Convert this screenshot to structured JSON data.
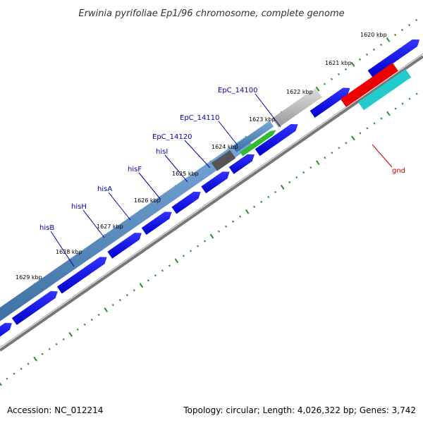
{
  "title": "Erwinia pyrifoliae Ep1/96 chromosome, complete genome",
  "footer": {
    "accession": "Accession: NC_012214",
    "summary": "Topology: circular; Length: 4,026,322 bp; Genes: 3,742"
  },
  "ticks": [
    {
      "label": "1620 kbp"
    },
    {
      "label": "1621 kbp"
    },
    {
      "label": "1622 kbp"
    },
    {
      "label": "1623 kbp"
    },
    {
      "label": "1624 kbp"
    },
    {
      "label": "1625 kbp"
    },
    {
      "label": "1626 kbp"
    },
    {
      "label": "1627 kbp"
    },
    {
      "label": "1628 kbp"
    },
    {
      "label": "1629 kbp"
    }
  ],
  "gene_labels": [
    {
      "name": "EpC_14100",
      "color": "#0000aa"
    },
    {
      "name": "EpC_14110",
      "color": "#0000aa"
    },
    {
      "name": "EpC_14120",
      "color": "#0000aa"
    },
    {
      "name": "hisI",
      "color": "#0000aa"
    },
    {
      "name": "hisF",
      "color": "#0000aa"
    },
    {
      "name": "hisA",
      "color": "#0000aa"
    },
    {
      "name": "hisH",
      "color": "#0000aa"
    },
    {
      "name": "hisB",
      "color": "#0000aa"
    },
    {
      "name": "gnd",
      "color": "#cc0000"
    }
  ],
  "colors": {
    "backbone": "#888888",
    "tick": "#2e8b2e",
    "cds_forward": "#0000ee",
    "operon": "#4a86b8",
    "gray_feature": "#bbbbbb",
    "dark_feature": "#555555",
    "green_feature": "#33bb33",
    "red_feature": "#ee0000",
    "cyan_feature": "#22cccc"
  }
}
